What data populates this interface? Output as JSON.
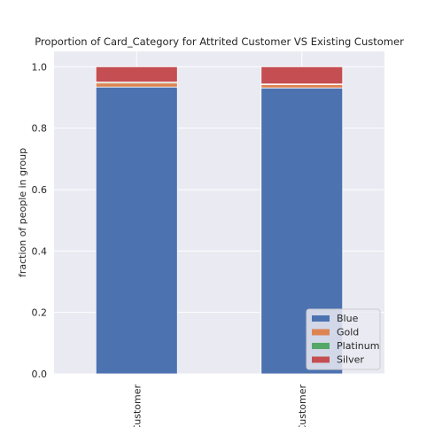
{
  "chart_data": {
    "type": "bar",
    "stacked": true,
    "title": "Proportion of Card_Category for Attrited Customer VS Existing Customer",
    "xlabel": "",
    "ylabel": "fraction of people in group",
    "categories": [
      "Customer",
      "Customer"
    ],
    "ylim": [
      0,
      1.05
    ],
    "yticks": [
      "0.0",
      "0.2",
      "0.4",
      "0.6",
      "0.8",
      "1.0"
    ],
    "grid": true,
    "legend_position": "lower-right",
    "series": [
      {
        "name": "Blue",
        "color": "#4c72b0",
        "values": [
          0.934,
          0.931
        ]
      },
      {
        "name": "Gold",
        "color": "#dd8452",
        "values": [
          0.013,
          0.011
        ]
      },
      {
        "name": "Platinum",
        "color": "#55a868",
        "values": [
          0.003,
          0.002
        ]
      },
      {
        "name": "Silver",
        "color": "#c44e52",
        "values": [
          0.05,
          0.056
        ]
      }
    ]
  },
  "colors": {
    "plot_background": "#eaeaf2",
    "grid": "#ffffff",
    "text": "#262626"
  }
}
